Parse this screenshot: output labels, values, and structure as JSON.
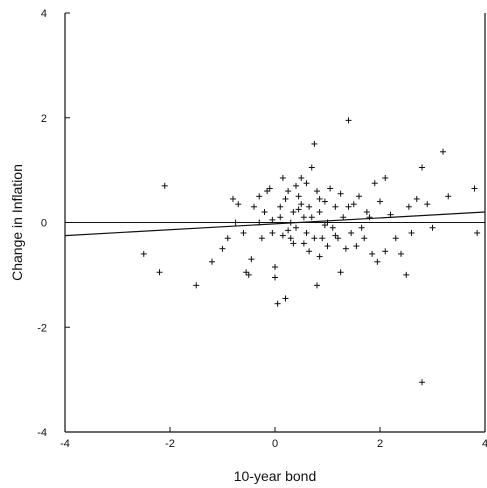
{
  "chart_data": {
    "type": "scatter",
    "title": "",
    "xlabel": "10-year bond",
    "ylabel": "Change in Inflation",
    "xlim": [
      -4,
      4
    ],
    "ylim": [
      -4,
      4
    ],
    "xticks": [
      "-4",
      "-2",
      "0",
      "2",
      "4"
    ],
    "yticks": [
      "4",
      "2",
      "0",
      "-2",
      "-4"
    ],
    "marker": "+",
    "grid": false,
    "reference_line_y": 0,
    "fit_line": {
      "x": [
        -4,
        4
      ],
      "y": [
        -0.25,
        0.2
      ]
    },
    "points": [
      [
        -2.5,
        -0.6
      ],
      [
        -2.2,
        -0.95
      ],
      [
        -2.1,
        0.7
      ],
      [
        -1.5,
        -1.2
      ],
      [
        -1.2,
        -0.75
      ],
      [
        -1.0,
        -0.5
      ],
      [
        -0.9,
        -0.3
      ],
      [
        -0.8,
        0.45
      ],
      [
        -0.7,
        0.35
      ],
      [
        -0.6,
        -0.2
      ],
      [
        -0.55,
        -0.95
      ],
      [
        -0.5,
        -1.0
      ],
      [
        -0.45,
        -0.7
      ],
      [
        -0.4,
        0.3
      ],
      [
        -0.3,
        0.5
      ],
      [
        -0.25,
        -0.3
      ],
      [
        -0.2,
        0.2
      ],
      [
        -0.15,
        0.6
      ],
      [
        -0.1,
        0.65
      ],
      [
        -0.05,
        -0.2
      ],
      [
        0.0,
        -1.05
      ],
      [
        0.0,
        -0.85
      ],
      [
        0.05,
        -1.55
      ],
      [
        0.1,
        0.1
      ],
      [
        0.15,
        -0.25
      ],
      [
        0.2,
        -1.45
      ],
      [
        0.2,
        0.45
      ],
      [
        0.25,
        0.6
      ],
      [
        0.3,
        0.0
      ],
      [
        0.3,
        -0.3
      ],
      [
        0.35,
        0.2
      ],
      [
        0.4,
        0.7
      ],
      [
        0.4,
        -0.1
      ],
      [
        0.45,
        0.5
      ],
      [
        0.5,
        0.85
      ],
      [
        0.5,
        0.35
      ],
      [
        0.55,
        -0.4
      ],
      [
        0.6,
        0.75
      ],
      [
        0.6,
        -0.2
      ],
      [
        0.65,
        0.3
      ],
      [
        0.7,
        1.05
      ],
      [
        0.7,
        0.1
      ],
      [
        0.75,
        1.5
      ],
      [
        0.75,
        -0.3
      ],
      [
        0.8,
        0.6
      ],
      [
        0.8,
        -1.2
      ],
      [
        0.85,
        0.2
      ],
      [
        0.85,
        -0.65
      ],
      [
        0.9,
        -0.3
      ],
      [
        0.95,
        0.4
      ],
      [
        1.0,
        0.0
      ],
      [
        1.0,
        -0.45
      ],
      [
        1.05,
        0.65
      ],
      [
        1.1,
        -0.1
      ],
      [
        1.15,
        0.3
      ],
      [
        1.2,
        -0.3
      ],
      [
        1.25,
        -0.95
      ],
      [
        1.3,
        0.1
      ],
      [
        1.35,
        -0.5
      ],
      [
        1.4,
        1.95
      ],
      [
        1.4,
        0.3
      ],
      [
        1.45,
        -0.2
      ],
      [
        1.5,
        0.35
      ],
      [
        1.55,
        -0.45
      ],
      [
        1.6,
        0.5
      ],
      [
        1.65,
        -0.1
      ],
      [
        1.7,
        -0.3
      ],
      [
        1.8,
        0.1
      ],
      [
        1.85,
        -0.6
      ],
      [
        1.9,
        0.75
      ],
      [
        1.95,
        -0.75
      ],
      [
        2.0,
        0.4
      ],
      [
        2.1,
        0.85
      ],
      [
        2.1,
        -0.55
      ],
      [
        2.2,
        0.15
      ],
      [
        2.3,
        -0.3
      ],
      [
        2.4,
        -0.6
      ],
      [
        2.5,
        -1.0
      ],
      [
        2.55,
        0.3
      ],
      [
        2.6,
        -0.2
      ],
      [
        2.7,
        0.45
      ],
      [
        2.8,
        1.05
      ],
      [
        2.8,
        -3.05
      ],
      [
        2.9,
        0.35
      ],
      [
        3.0,
        -0.1
      ],
      [
        3.2,
        1.35
      ],
      [
        3.3,
        0.5
      ],
      [
        3.8,
        0.65
      ],
      [
        3.85,
        -0.2
      ],
      [
        -0.3,
        0.0
      ],
      [
        0.1,
        0.3
      ],
      [
        0.55,
        0.1
      ],
      [
        0.95,
        -0.05
      ],
      [
        1.15,
        -0.25
      ],
      [
        0.25,
        -0.15
      ],
      [
        0.65,
        -0.55
      ],
      [
        -0.05,
        0.05
      ],
      [
        0.45,
        0.25
      ],
      [
        1.75,
        0.2
      ],
      [
        0.85,
        0.45
      ],
      [
        0.15,
        0.85
      ],
      [
        1.25,
        0.55
      ],
      [
        -0.75,
        0.0
      ],
      [
        0.35,
        -0.4
      ]
    ]
  }
}
